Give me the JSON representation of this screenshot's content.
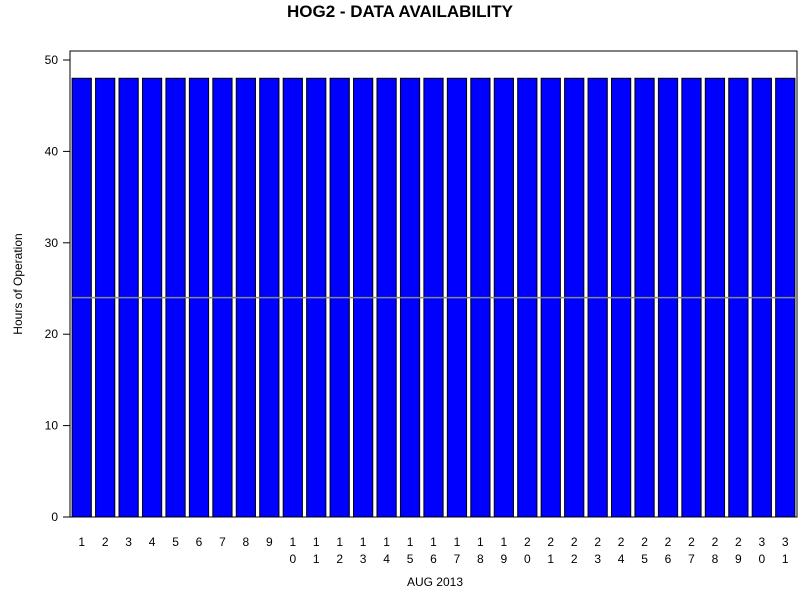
{
  "chart_data": {
    "type": "bar",
    "title": "HOG2 - DATA AVAILABILITY",
    "x_label": "AUG 2013",
    "y_label": "Hours of Operation",
    "categories": [
      "1",
      "2",
      "3",
      "4",
      "5",
      "6",
      "7",
      "8",
      "9",
      "10",
      "11",
      "12",
      "13",
      "14",
      "15",
      "16",
      "17",
      "18",
      "19",
      "20",
      "21",
      "22",
      "23",
      "24",
      "25",
      "26",
      "27",
      "28",
      "29",
      "30",
      "31"
    ],
    "values": [
      48,
      48,
      48,
      48,
      48,
      48,
      48,
      48,
      48,
      48,
      48,
      48,
      48,
      48,
      48,
      48,
      48,
      48,
      48,
      48,
      48,
      48,
      48,
      48,
      48,
      48,
      48,
      48,
      48,
      48,
      48
    ],
    "color": "#0000ff",
    "reference_line": 24,
    "ylim": [
      0,
      50
    ],
    "yticks": [
      0,
      10,
      20,
      30,
      40,
      50
    ]
  }
}
